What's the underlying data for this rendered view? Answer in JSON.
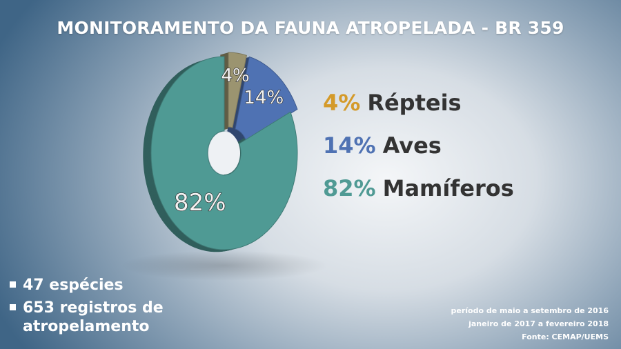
{
  "title": "MONITORAMENTO DA FAUNA ATROPELADA - BR 359",
  "chart_data": {
    "type": "pie",
    "title": "MONITORAMENTO DA FAUNA ATROPELADA - BR 359",
    "donut": true,
    "unit": "%",
    "slices": [
      {
        "label": "Répteis",
        "value": 4,
        "value_label": "4%",
        "color": "#9b9470",
        "legend_color": "#d49a2a"
      },
      {
        "label": "Aves",
        "value": 14,
        "value_label": "14%",
        "color": "#4f72b3",
        "legend_color": "#4f72b3"
      },
      {
        "label": "Mamíferos",
        "value": 82,
        "value_label": "82%",
        "color": "#4f9a94",
        "legend_color": "#4f9a94"
      }
    ]
  },
  "stats": [
    {
      "text": "47 espécies"
    },
    {
      "text": "653 registros de atropelamento"
    }
  ],
  "footnotes": [
    "período de maio a setembro de 2016",
    "janeiro de 2017 a fevereiro 2018",
    "Fonte: CEMAP/UEMS"
  ]
}
